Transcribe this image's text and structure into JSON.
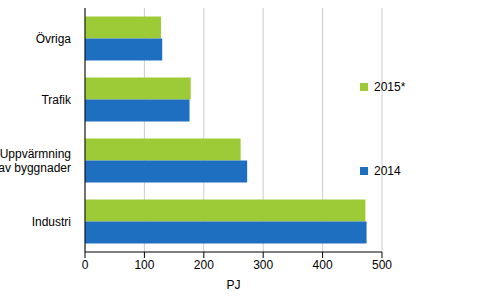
{
  "chart_data": {
    "type": "bar",
    "orientation": "horizontal",
    "categories": [
      "Övriga",
      "Trafik",
      "Uppvärmning av byggnader",
      "Industri"
    ],
    "series": [
      {
        "name": "2015*",
        "color": "#9dcb38",
        "values": [
          128,
          178,
          262,
          472
        ]
      },
      {
        "name": "2014",
        "color": "#1f6fc1",
        "values": [
          130,
          176,
          273,
          474
        ]
      }
    ],
    "x_label": "PJ",
    "xlim": [
      0,
      500
    ],
    "xticks": [
      0,
      100,
      200,
      300,
      400,
      500
    ],
    "grid": true,
    "legend": "right"
  }
}
